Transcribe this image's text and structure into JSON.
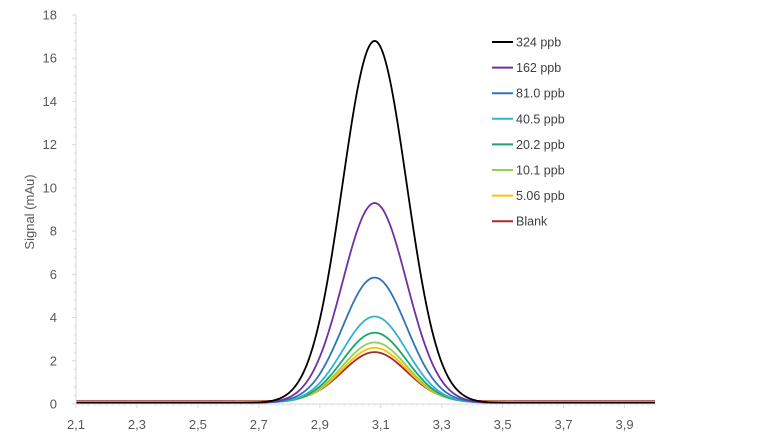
{
  "chart_data": {
    "type": "line",
    "title": "",
    "xlabel": "",
    "ylabel": "Signal (mAu)",
    "xlim": [
      2.1,
      4.0
    ],
    "ylim": [
      0,
      18
    ],
    "x_ticks": [
      2.1,
      2.3,
      2.5,
      2.7,
      2.9,
      3.1,
      3.3,
      3.5,
      3.7,
      3.9
    ],
    "x_tick_labels": [
      "2,1",
      "2,3",
      "2,5",
      "2,7",
      "2,9",
      "3,1",
      "3,3",
      "3,5",
      "3,7",
      "3,9"
    ],
    "y_ticks": [
      0,
      2,
      4,
      6,
      8,
      10,
      12,
      14,
      16,
      18
    ],
    "y_tick_labels": [
      "0",
      "2",
      "4",
      "6",
      "8",
      "10",
      "12",
      "14",
      "16",
      "18"
    ],
    "grid": false,
    "legend_position": "top-right",
    "peak_center": 3.08,
    "peak_sigma": 0.105,
    "series": [
      {
        "name": "324 ppb",
        "color": "#000000",
        "peak": 16.8,
        "baseline": 0.05
      },
      {
        "name": "162 ppb",
        "color": "#7030a0",
        "peak": 9.3,
        "baseline": 0.05
      },
      {
        "name": "81.0 ppb",
        "color": "#2e75b6",
        "peak": 5.85,
        "baseline": 0.06
      },
      {
        "name": "40.5 ppb",
        "color": "#31b3d1",
        "peak": 4.05,
        "baseline": 0.06
      },
      {
        "name": "20.2 ppb",
        "color": "#21a366",
        "peak": 3.3,
        "baseline": 0.07
      },
      {
        "name": "10.1 ppb",
        "color": "#92d050",
        "peak": 2.85,
        "baseline": 0.08
      },
      {
        "name": "5.06 ppb",
        "color": "#ffc000",
        "peak": 2.6,
        "baseline": 0.1
      },
      {
        "name": "Blank",
        "color": "#a52a2a",
        "peak": 2.4,
        "baseline": 0.13
      }
    ]
  }
}
